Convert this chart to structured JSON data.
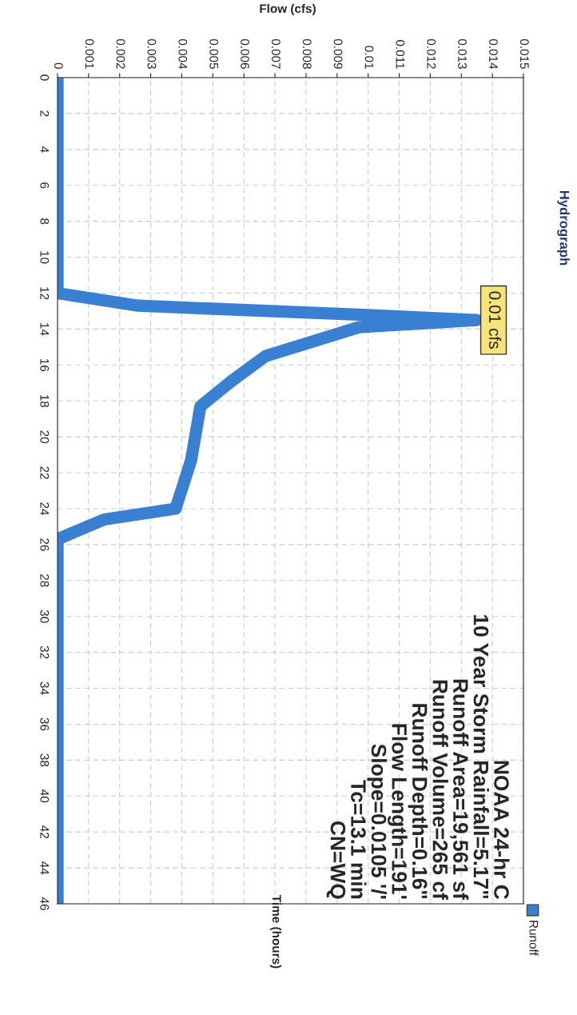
{
  "chart_data": {
    "type": "line",
    "orientation": "horizontal",
    "title": "Hydrograph",
    "xlabel": "Flow (cfs)",
    "ylabel": "Time (hours)",
    "x": [
      0,
      12,
      12.7,
      13.2,
      13.5,
      13.9,
      15.5,
      16.9,
      18.3,
      21.3,
      24.0,
      24.6,
      25.7,
      46
    ],
    "series": [
      {
        "name": "Runoff",
        "color": "#3a80d2",
        "values": [
          0,
          0,
          0.0026,
          0.0097,
          0.0135,
          0.0097,
          0.0067,
          0.0056,
          0.0046,
          0.0043,
          0.0038,
          0.0015,
          0,
          0
        ]
      }
    ],
    "ylim": [
      46,
      0
    ],
    "yticks": [
      0,
      2,
      4,
      6,
      8,
      10,
      12,
      14,
      16,
      18,
      20,
      22,
      24,
      26,
      28,
      30,
      32,
      34,
      36,
      38,
      40,
      42,
      44,
      46
    ],
    "xlim": [
      0,
      0.015
    ],
    "xticks": [
      0,
      0.001,
      0.002,
      0.003,
      0.004,
      0.005,
      0.006,
      0.007,
      0.008,
      0.009,
      0.01,
      0.011,
      0.012,
      0.013,
      0.014,
      0.015
    ],
    "annotations": [
      "0.01 cfs",
      "NOAA 24-hr C\n10 Year Storm Rainfall=5.17\"\nRunoff Area=19,561 sf\nRunoff Volume=265 cf\nRunoff Depth=0.16\"\nFlow Length=191'\nSlope=0.0105 '/'\nTc=13.1 min\nCN=WQ"
    ],
    "grid": true,
    "legend": "bottom right"
  }
}
